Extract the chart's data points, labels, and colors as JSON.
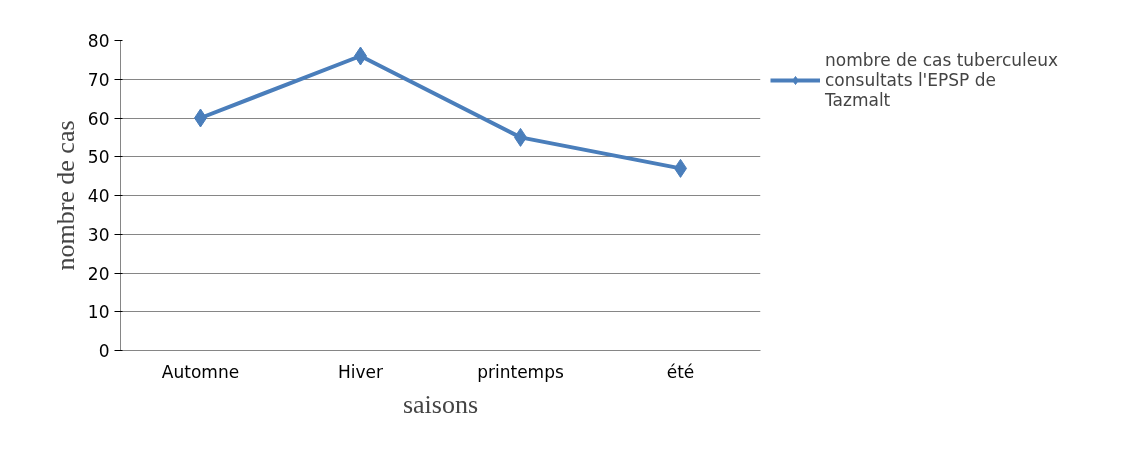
{
  "chart_data": {
    "type": "line",
    "xlabel": "saisons",
    "ylabel": "nombre de cas",
    "categories": [
      "Automne",
      "Hiver",
      "printemps",
      "été"
    ],
    "series": [
      {
        "name": "nombre de cas tuberculeux consultats l'EPSP de Tazmalt",
        "color": "#4a7ebb",
        "values": [
          60,
          76,
          55,
          47
        ]
      }
    ],
    "ylim": [
      0,
      80
    ],
    "yticks": [
      0,
      10,
      20,
      30,
      40,
      50,
      60,
      70,
      80
    ],
    "grid": "y",
    "legend": "right",
    "marker": "diamond",
    "line_style": "solid"
  }
}
